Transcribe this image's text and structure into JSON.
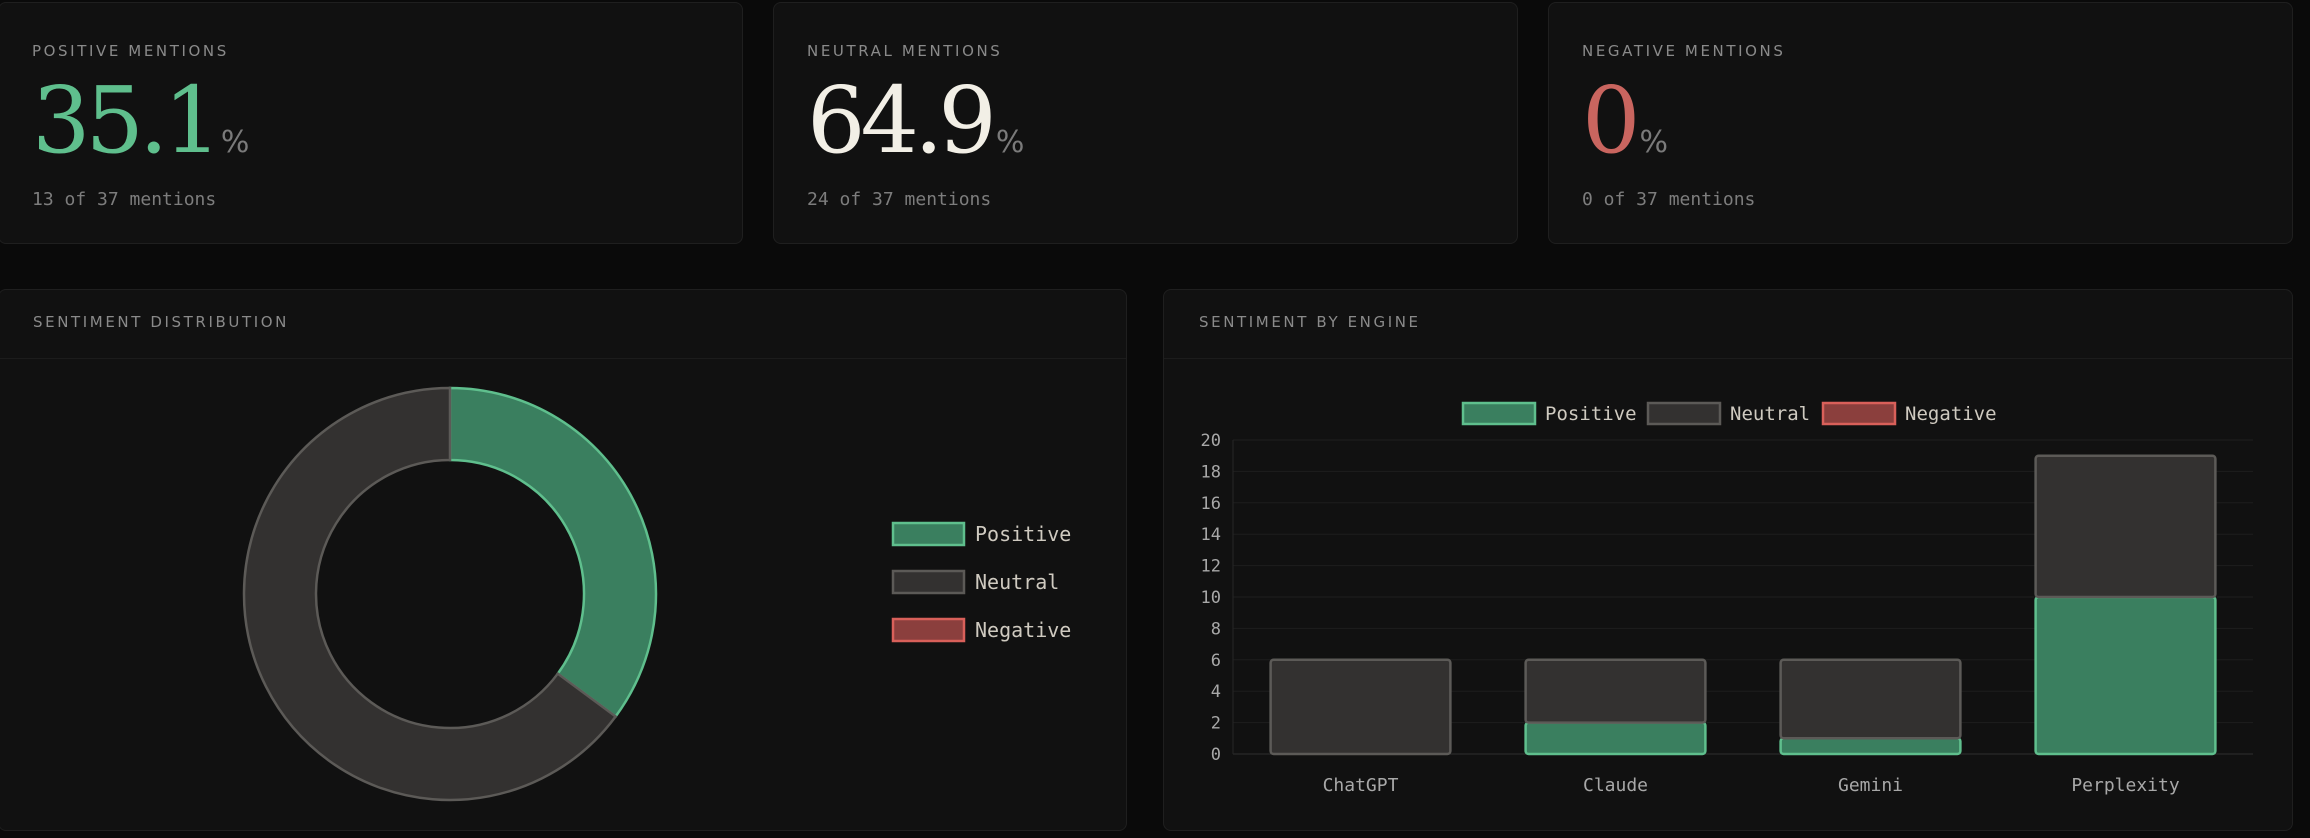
{
  "kpis": [
    {
      "label": "POSITIVE MENTIONS",
      "value": "35.1",
      "unit": "%",
      "sub": "13 of 37 mentions",
      "color": "#5fbf8d"
    },
    {
      "label": "NEUTRAL MENTIONS",
      "value": "64.9",
      "unit": "%",
      "sub": "24 of 37 mentions",
      "color": "#f2efe6"
    },
    {
      "label": "NEGATIVE MENTIONS",
      "value": "0",
      "unit": "%",
      "sub": "0 of 37 mentions",
      "color": "#c9655f"
    }
  ],
  "colors": {
    "positive_fill": "#3a7f5f",
    "positive_stroke": "#5fbf8d",
    "neutral_fill": "#333130",
    "neutral_stroke": "#5c5a57",
    "negative_fill": "#8b3f3d",
    "negative_stroke": "#d9605a"
  },
  "chart_data": [
    {
      "type": "pie",
      "title": "SENTIMENT DISTRIBUTION",
      "labels": [
        "Positive",
        "Neutral",
        "Negative"
      ],
      "values": [
        13,
        24,
        0
      ],
      "legend_position": "right"
    },
    {
      "type": "bar",
      "stacked": true,
      "title": "SENTIMENT BY ENGINE",
      "categories": [
        "ChatGPT",
        "Claude",
        "Gemini",
        "Perplexity"
      ],
      "series": [
        {
          "name": "Positive",
          "values": [
            0,
            2,
            1,
            10
          ]
        },
        {
          "name": "Neutral",
          "values": [
            6,
            4,
            5,
            9
          ]
        },
        {
          "name": "Negative",
          "values": [
            0,
            0,
            0,
            0
          ]
        }
      ],
      "ylim": [
        0,
        20
      ],
      "yticks": [
        "0",
        "2",
        "4",
        "6",
        "8",
        "10",
        "12",
        "14",
        "16",
        "18",
        "20"
      ],
      "grid": true,
      "legend_position": "top"
    }
  ]
}
